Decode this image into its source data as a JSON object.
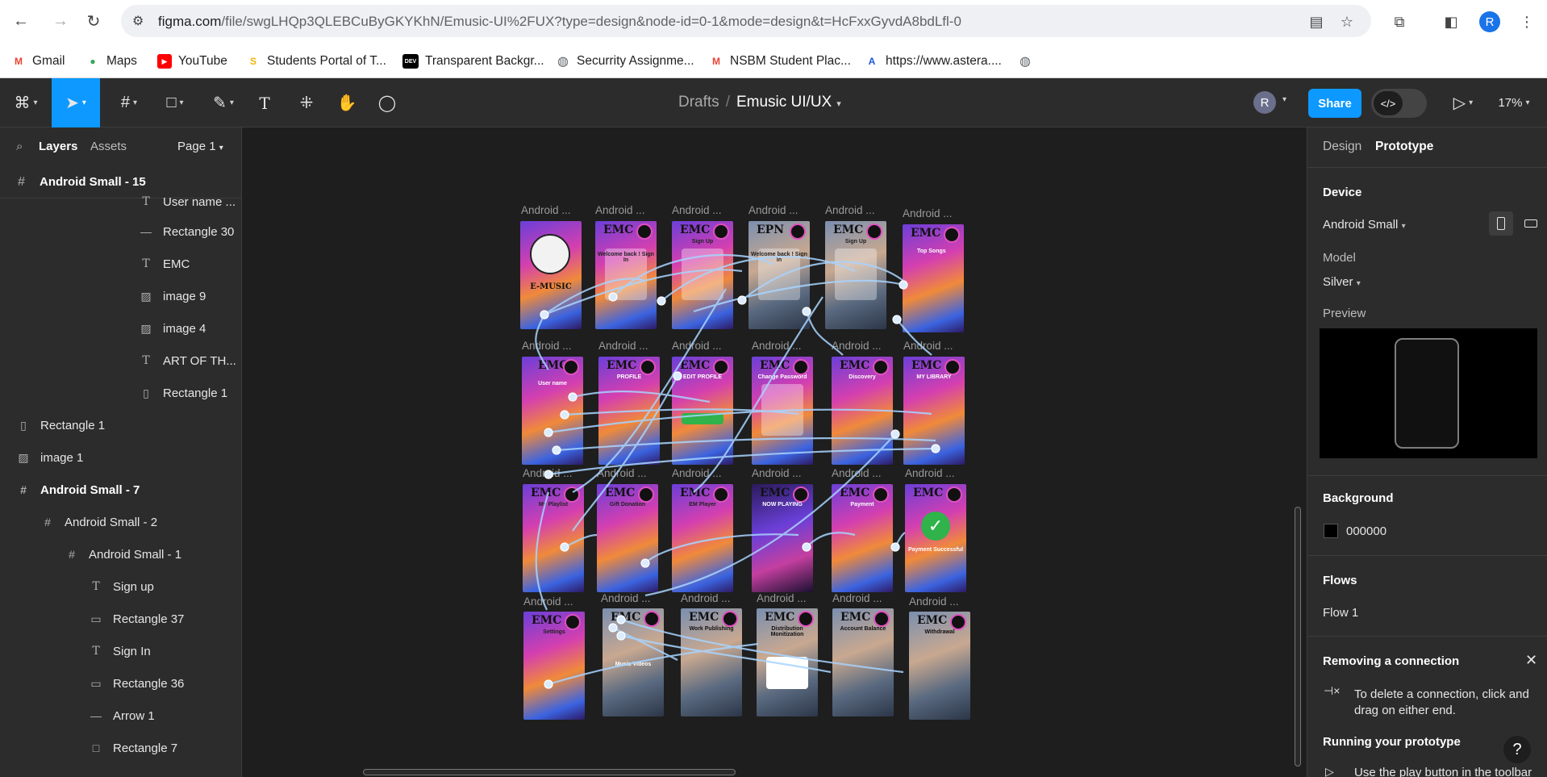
{
  "browser": {
    "url_host": "figma.com",
    "url_path": "/file/swgLHQp3QLEBCuByGKYKhN/Emusic-UI%2FUX?type=design&node-id=0-1&mode=design&t=HcFxxGyvdA8bdLfl-0",
    "profile_initial": "R",
    "bookmarks": [
      {
        "label": "Gmail",
        "icon": "gmail-icon",
        "color": "#ea4335",
        "glyph": "M"
      },
      {
        "label": "Maps",
        "icon": "maps-icon",
        "color": "#34a853",
        "glyph": "●"
      },
      {
        "label": "YouTube",
        "icon": "youtube-icon",
        "color": "#ff0000",
        "glyph": "▶"
      },
      {
        "label": "Students Portal of T...",
        "icon": "portal-icon",
        "color": "#f4b400",
        "glyph": "S"
      },
      {
        "label": "Transparent Backgr...",
        "icon": "dev-icon",
        "color": "#000000",
        "glyph": "DEV"
      },
      {
        "label": "Securrity Assignme...",
        "icon": "globe-icon",
        "color": "#5f6368",
        "glyph": "◍"
      },
      {
        "label": "NSBM Student Plac...",
        "icon": "gmail-icon",
        "color": "#ea4335",
        "glyph": "M"
      },
      {
        "label": "https://www.astera....",
        "icon": "astera-icon",
        "color": "#1a56db",
        "glyph": "A"
      }
    ]
  },
  "toolbar": {
    "breadcrumb_parent": "Drafts",
    "breadcrumb_separator": "/",
    "file_name": "Emusic UI/UX",
    "avatar_initial": "R",
    "share_label": "Share",
    "zoom": "17%"
  },
  "left_panel": {
    "tabs": {
      "layers": "Layers",
      "assets": "Assets",
      "page": "Page 1"
    },
    "header_frame": "Android Small - 15",
    "layers": [
      {
        "label": "User name ...",
        "icon": "text",
        "frame": false
      },
      {
        "label": "Rectangle 30",
        "icon": "line",
        "frame": false
      },
      {
        "label": "EMC",
        "icon": "text",
        "frame": false
      },
      {
        "label": "image 9",
        "icon": "image",
        "frame": false
      },
      {
        "label": "image 4",
        "icon": "image",
        "frame": false
      },
      {
        "label": "ART OF TH...",
        "icon": "text",
        "frame": false
      },
      {
        "label": "Rectangle 1",
        "icon": "rect-tall",
        "frame": false
      },
      {
        "label": "Rectangle 1",
        "icon": "rect-tall",
        "frame": false
      },
      {
        "label": "image 1",
        "icon": "image",
        "frame": false
      },
      {
        "label": "Android Small - 7",
        "icon": "frame",
        "frame": true
      },
      {
        "label": "Android Small - 2",
        "icon": "frame",
        "frame": false
      },
      {
        "label": "Android Small - 1",
        "icon": "frame",
        "frame": false
      },
      {
        "label": "Sign up",
        "icon": "text",
        "frame": false
      },
      {
        "label": "Rectangle 37",
        "icon": "rect-wide",
        "frame": false
      },
      {
        "label": "Sign In",
        "icon": "text",
        "frame": false
      },
      {
        "label": "Rectangle 36",
        "icon": "rect-wide",
        "frame": false
      },
      {
        "label": "Arrow 1",
        "icon": "line",
        "frame": false
      },
      {
        "label": "Rectangle 7",
        "icon": "rect",
        "frame": false
      }
    ]
  },
  "canvas": {
    "frame_label": "Android ...",
    "screens": [
      {
        "title": "",
        "logo": "E-MUSIC"
      },
      {
        "title": "Welcome back ! Sign In",
        "logo": "EMC"
      },
      {
        "title": "Sign Up",
        "logo": "EMC"
      },
      {
        "title": "Welcome back ! Sign In",
        "logo": "EPN"
      },
      {
        "title": "Sign Up",
        "logo": "EMC"
      },
      {
        "title": "Top Songs",
        "logo": "EMC"
      },
      {
        "title": "User name",
        "logo": "EMC"
      },
      {
        "title": "PROFILE",
        "logo": "EMC"
      },
      {
        "title": "EDIT PROFILE",
        "logo": "EMC"
      },
      {
        "title": "Change Password",
        "logo": "EMC"
      },
      {
        "title": "Discovery",
        "logo": "EMC"
      },
      {
        "title": "MY LIBRARY",
        "logo": "EMC"
      },
      {
        "title": "My Playlist",
        "logo": "EMC"
      },
      {
        "title": "Gift Donation",
        "logo": "EMC"
      },
      {
        "title": "EM Player",
        "logo": "EMC"
      },
      {
        "title": "NOW PLAYING",
        "logo": "EMC"
      },
      {
        "title": "Payment",
        "logo": "EMC"
      },
      {
        "title": "Payment Successful",
        "logo": "EMC"
      },
      {
        "title": "Settings",
        "logo": "EMC"
      },
      {
        "title": "Music Videos",
        "logo": "EMC"
      },
      {
        "title": "Work Publishing",
        "logo": "EMC"
      },
      {
        "title": "Distribution Monitization",
        "logo": "EMC"
      },
      {
        "title": "Account Balance",
        "logo": "EMC"
      },
      {
        "title": "Withdrawal",
        "logo": "EMC"
      }
    ]
  },
  "right_panel": {
    "tabs": {
      "design": "Design",
      "prototype": "Prototype"
    },
    "device_label": "Device",
    "device_value": "Android Small",
    "model_label": "Model",
    "model_value": "Silver",
    "preview_label": "Preview",
    "background_label": "Background",
    "background_value": "000000",
    "flows_label": "Flows",
    "flow_item": "Flow 1",
    "tip_title": "Removing a connection",
    "tip_text": "To delete a connection, click and drag on either end.",
    "running_title": "Running your prototype",
    "running_text": "Use the play button in the toolbar"
  },
  "colors": {
    "accent": "#0d99ff",
    "panel": "#2c2c2c",
    "canvas": "#1e1e1e",
    "connection": "#a8d4ff"
  }
}
